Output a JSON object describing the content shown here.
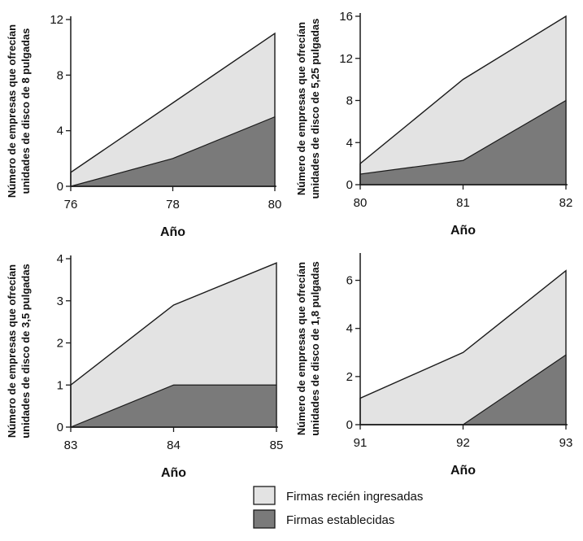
{
  "colors": {
    "new_firms": "#e3e3e3",
    "established_firms": "#7a7a7a",
    "line": "#1a1a1a"
  },
  "legend": {
    "position": "bottom-center",
    "items": [
      {
        "label": "Firmas recién ingresadas",
        "color": "#e3e3e3"
      },
      {
        "label": "Firmas establecidas",
        "color": "#7a7a7a"
      }
    ]
  },
  "chart_data": [
    {
      "type": "area",
      "stacked": true,
      "xlabel": "Año",
      "ylabel": [
        "Número de empresas que ofrecían",
        "unidades de disco de 8 pulgadas"
      ],
      "x": [
        76,
        78,
        80
      ],
      "xticks": [
        "76",
        "78",
        "80"
      ],
      "ylim": [
        0,
        12
      ],
      "yticks": [
        0,
        4,
        8,
        12
      ],
      "series": [
        {
          "name": "Firmas establecidas",
          "values": [
            0,
            2,
            5
          ]
        },
        {
          "name": "Firmas recién ingresadas",
          "values": [
            1,
            4,
            6
          ]
        }
      ],
      "totals": [
        1,
        6,
        11
      ]
    },
    {
      "type": "area",
      "stacked": true,
      "xlabel": "Año",
      "ylabel": [
        "Número de empresas que ofrecían",
        "unidades de disco de 5,25 pulgadas"
      ],
      "x": [
        80,
        81,
        82
      ],
      "xticks": [
        "80",
        "81",
        "82"
      ],
      "ylim": [
        0,
        16
      ],
      "yticks": [
        0,
        4,
        8,
        12,
        16
      ],
      "series": [
        {
          "name": "Firmas establecidas",
          "values": [
            1,
            2.3,
            8
          ]
        },
        {
          "name": "Firmas recién ingresadas",
          "values": [
            1,
            7.7,
            8
          ]
        }
      ],
      "totals": [
        2,
        10,
        16
      ]
    },
    {
      "type": "area",
      "stacked": true,
      "xlabel": "Año",
      "ylabel": [
        "Número de empresas que ofrecían",
        "unidades de disco de 3,5 pulgadas"
      ],
      "x": [
        83,
        84,
        85
      ],
      "xticks": [
        "83",
        "84",
        "85"
      ],
      "ylim": [
        0,
        4
      ],
      "yticks": [
        0,
        1,
        2,
        3,
        4
      ],
      "series": [
        {
          "name": "Firmas establecidas",
          "values": [
            0,
            1,
            1
          ]
        },
        {
          "name": "Firmas recién ingresadas",
          "values": [
            1,
            1.9,
            2.9
          ]
        }
      ],
      "totals": [
        1,
        2.9,
        3.9
      ]
    },
    {
      "type": "area",
      "stacked": true,
      "xlabel": "Año",
      "ylabel": [
        "Número de empresas que ofrecían",
        "unidades de disco de 1,8 pulgadas"
      ],
      "x": [
        91,
        92,
        93
      ],
      "xticks": [
        "91",
        "92",
        "93"
      ],
      "ylim": [
        0,
        7
      ],
      "yticks": [
        0,
        2,
        4,
        6
      ],
      "series": [
        {
          "name": "Firmas establecidas",
          "values": [
            0,
            0,
            2.9
          ]
        },
        {
          "name": "Firmas recién ingresadas",
          "values": [
            1.1,
            3,
            3.5
          ]
        }
      ],
      "totals": [
        1.1,
        3,
        6.4
      ]
    }
  ]
}
